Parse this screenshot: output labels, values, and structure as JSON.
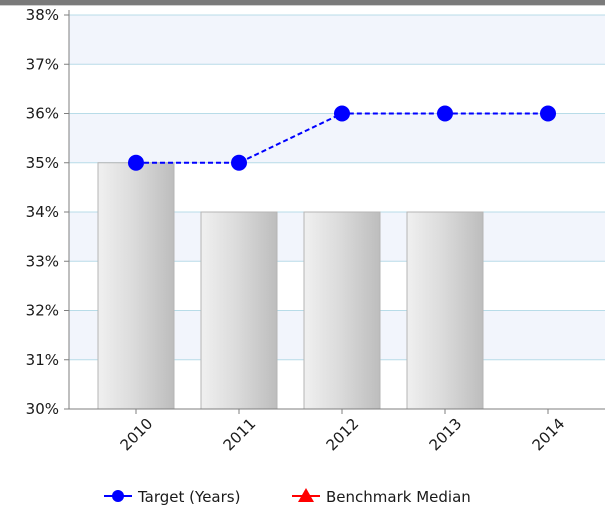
{
  "chart_data": {
    "type": "bar",
    "categories": [
      "2010",
      "2011",
      "2012",
      "2013",
      "2014"
    ],
    "series": [
      {
        "name": "",
        "kind": "bar",
        "values": [
          35,
          34,
          34,
          34,
          null
        ],
        "color": "#d8d8d8"
      },
      {
        "name": "Target (Years)",
        "kind": "line",
        "values": [
          35,
          35,
          36,
          36,
          36
        ],
        "color": "#0000ff",
        "marker": "circle",
        "dash": "dashed"
      },
      {
        "name": "Benchmark Median",
        "kind": "line",
        "values": [
          null,
          null,
          null,
          null,
          null
        ],
        "color": "#ff0000",
        "marker": "triangle"
      }
    ],
    "yticks": [
      "30%",
      "31%",
      "32%",
      "33%",
      "34%",
      "35%",
      "36%",
      "37%",
      "38%"
    ],
    "ylim": [
      30,
      38
    ],
    "grid": true,
    "legend_position": "bottom",
    "colors": {
      "grid": "#b8dce8",
      "band": "#f2f5fc",
      "axis": "#7f7f7f"
    }
  }
}
